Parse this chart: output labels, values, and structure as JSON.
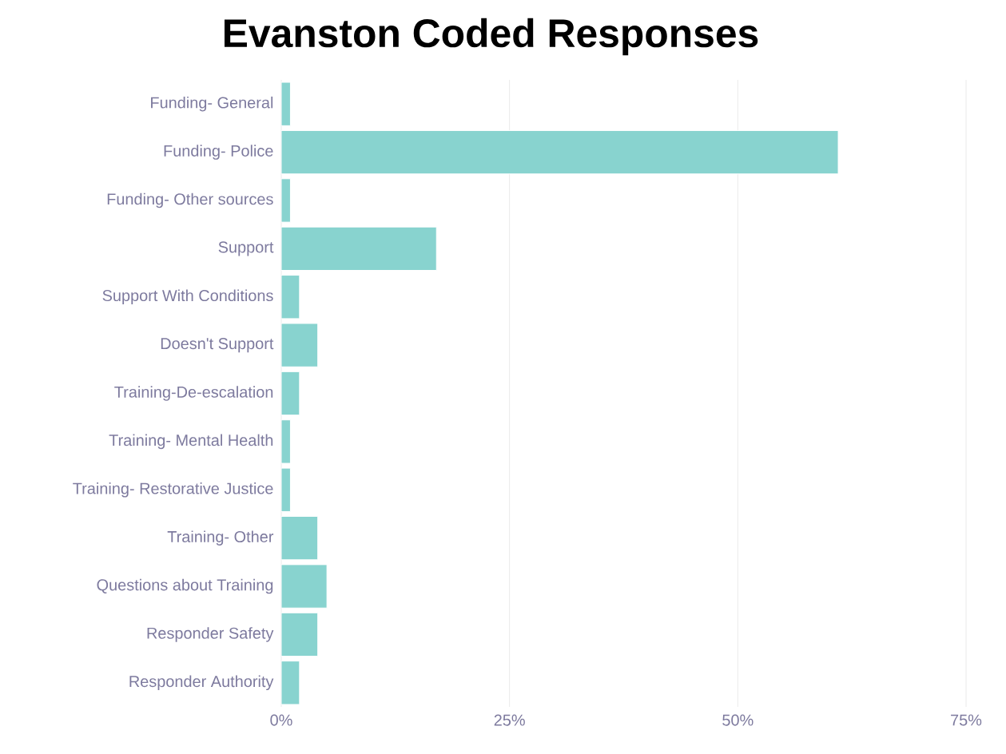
{
  "chart_data": {
    "type": "bar",
    "orientation": "horizontal",
    "title": "Evanston Coded Responses",
    "categories": [
      "Funding- General",
      "Funding- Police",
      "Funding- Other sources",
      "Support",
      "Support With Conditions",
      "Doesn't Support",
      "Training-De-escalation",
      "Training- Mental Health",
      "Training- Restorative Justice",
      "Training- Other",
      "Questions about Training",
      "Responder Safety",
      "Responder Authority"
    ],
    "values": [
      1,
      61,
      1,
      17,
      2,
      4,
      2,
      1,
      1,
      4,
      5,
      4,
      2
    ],
    "color": "#88d3cf",
    "xlim": [
      0,
      75
    ],
    "xticks": [
      {
        "value": 0,
        "label": "0%"
      },
      {
        "value": 25,
        "label": "25%"
      },
      {
        "value": 50,
        "label": "50%"
      },
      {
        "value": 75,
        "label": "75%"
      }
    ],
    "grid": "x"
  }
}
